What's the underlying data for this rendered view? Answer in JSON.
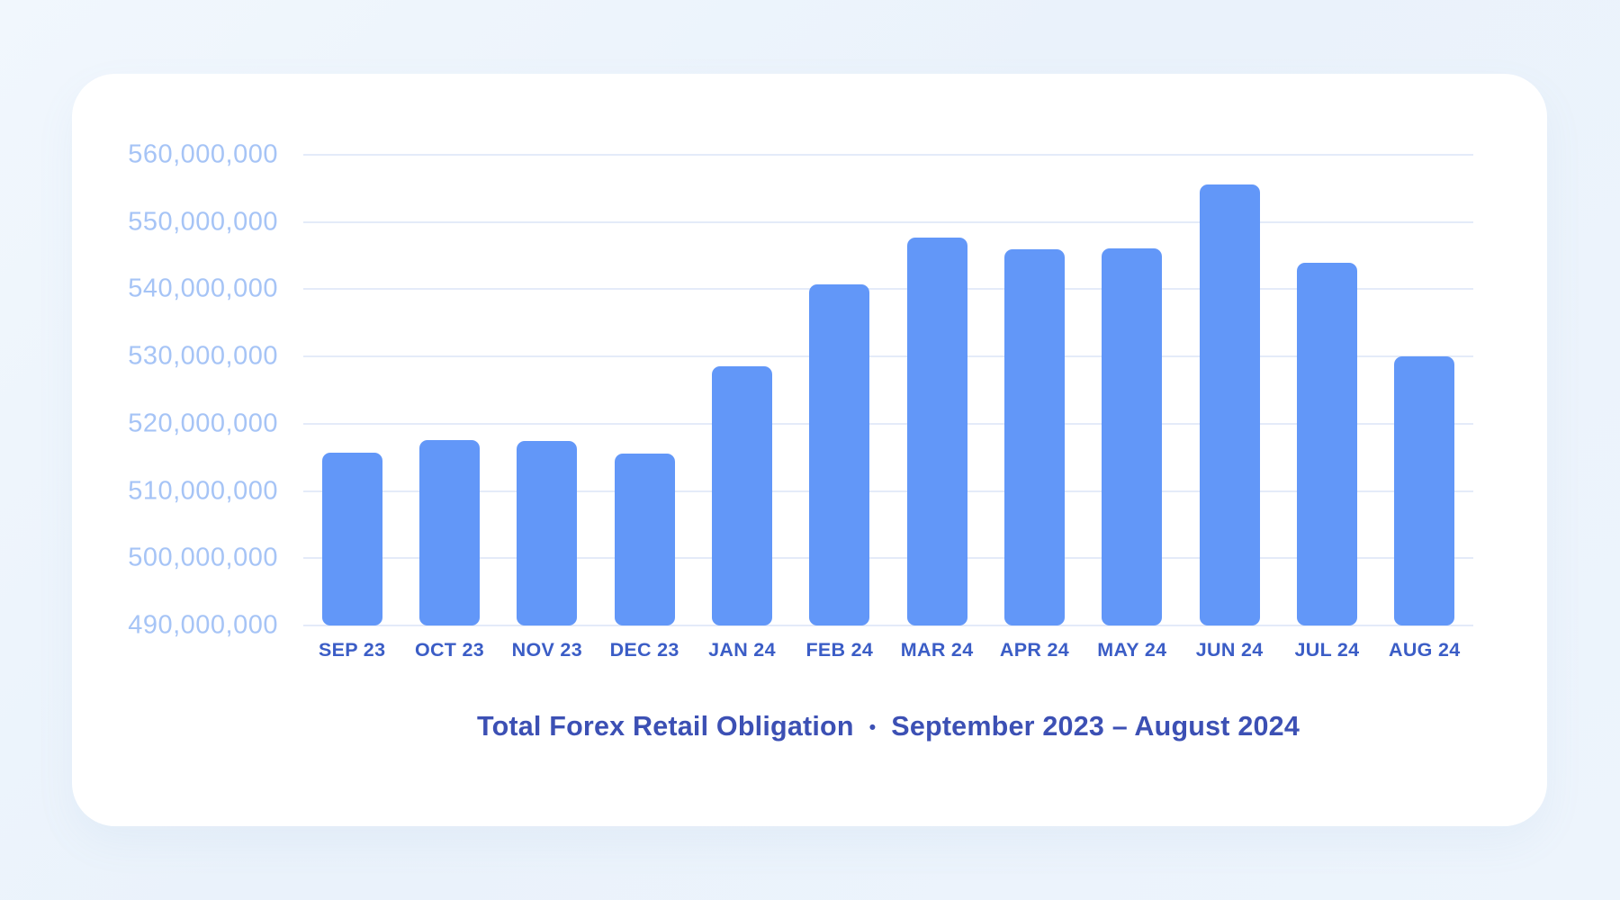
{
  "page": {
    "background_color": "#ECF3FB",
    "card_background_color": "#FFFFFF"
  },
  "chart_data": {
    "type": "bar",
    "title": "Total Forex Retail Obligation",
    "title_separator": "•",
    "subtitle": "September 2023 – August 2024",
    "xlabel": "",
    "ylabel": "",
    "categories": [
      "SEP 23",
      "OCT 23",
      "NOV 23",
      "DEC 23",
      "JAN 24",
      "FEB 24",
      "MAR 24",
      "APR 24",
      "MAY 24",
      "JUN 24",
      "JUL 24",
      "AUG 24"
    ],
    "values": [
      515700000,
      517600000,
      517400000,
      515600000,
      528600000,
      540700000,
      547700000,
      546000000,
      546100000,
      555600000,
      544000000,
      530000000
    ],
    "ylim": [
      490000000,
      560000000
    ],
    "ytick_step": 10000000,
    "ytick_labels": [
      "560,000,000",
      "550,000,000",
      "540,000,000",
      "530,000,000",
      "520,000,000",
      "510,000,000",
      "500,000,000",
      "490,000,000"
    ],
    "grid": true,
    "legend_position": "none",
    "colors": {
      "bar": "#6297F8",
      "gridline": "#E4EBF9",
      "ytick_label": "#A6C4F6",
      "xtick_label": "#3B5DC6",
      "title": "#3C50B4"
    }
  }
}
